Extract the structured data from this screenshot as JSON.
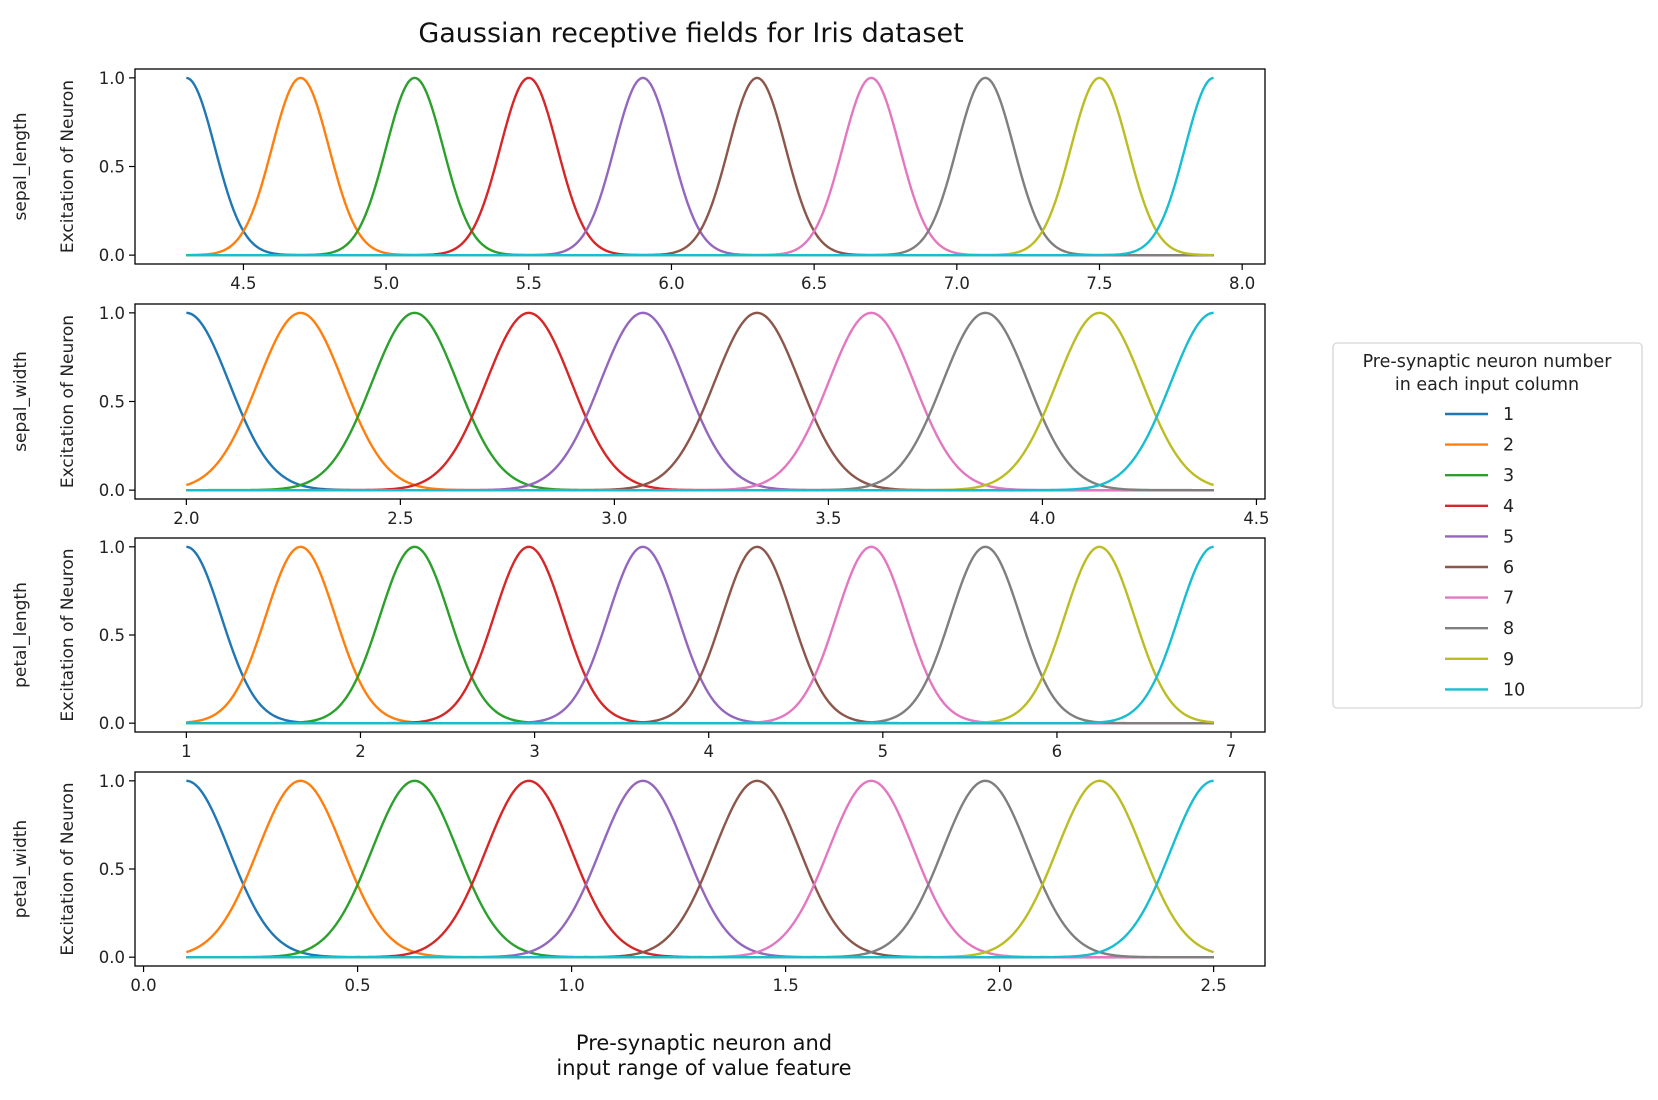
{
  "chart_data": {
    "type": "line",
    "title": "Gaussian receptive fields for Iris dataset",
    "xlabel": [
      "Pre-synaptic neuron and",
      "input range of value feature"
    ],
    "ylabel": "Excitation of Neuron",
    "legend": {
      "title": [
        "Pre-synaptic neuron number",
        "in each input column"
      ],
      "placement": "right",
      "entries": [
        "1",
        "2",
        "3",
        "4",
        "5",
        "6",
        "7",
        "8",
        "9",
        "10"
      ]
    },
    "colors": [
      "#1f77b4",
      "#ff7f0e",
      "#2ca02c",
      "#d62728",
      "#9467bd",
      "#8c564b",
      "#e377c2",
      "#7f7f7f",
      "#bcbd22",
      "#17becf"
    ],
    "neurons": 10,
    "ylim": [
      -0.05,
      1.05
    ],
    "yticks": [
      0.0,
      0.5,
      1.0
    ],
    "ytick_labels": [
      "0.0",
      "0.5",
      "1.0"
    ],
    "subplots": [
      {
        "feature": "sepal_length",
        "range": [
          4.3,
          7.9
        ],
        "sigma": 0.1,
        "xlim": [
          4.12,
          8.08
        ],
        "xticks": [
          4.5,
          5.0,
          5.5,
          6.0,
          6.5,
          7.0,
          7.5,
          8.0
        ],
        "xtick_labels": [
          "4.5",
          "5.0",
          "5.5",
          "6.0",
          "6.5",
          "7.0",
          "7.5",
          "8.0"
        ]
      },
      {
        "feature": "sepal_width",
        "range": [
          2.0,
          4.4
        ],
        "sigma": 0.1,
        "xlim": [
          1.88,
          4.52
        ],
        "xticks": [
          2.0,
          2.5,
          3.0,
          3.5,
          4.0,
          4.5
        ],
        "xtick_labels": [
          "2.0",
          "2.5",
          "3.0",
          "3.5",
          "4.0",
          "4.5"
        ]
      },
      {
        "feature": "petal_length",
        "range": [
          1.0,
          6.9
        ],
        "sigma": 0.2,
        "xlim": [
          0.705,
          7.195
        ],
        "xticks": [
          1,
          2,
          3,
          4,
          5,
          6,
          7
        ],
        "xtick_labels": [
          "1",
          "2",
          "3",
          "4",
          "5",
          "6",
          "7"
        ]
      },
      {
        "feature": "petal_width",
        "range": [
          0.1,
          2.5
        ],
        "sigma": 0.1,
        "xlim": [
          -0.02,
          2.62
        ],
        "xticks": [
          0.0,
          0.5,
          1.0,
          1.5,
          2.0,
          2.5
        ],
        "xtick_labels": [
          "0.0",
          "0.5",
          "1.0",
          "1.5",
          "2.0",
          "2.5"
        ]
      }
    ]
  }
}
